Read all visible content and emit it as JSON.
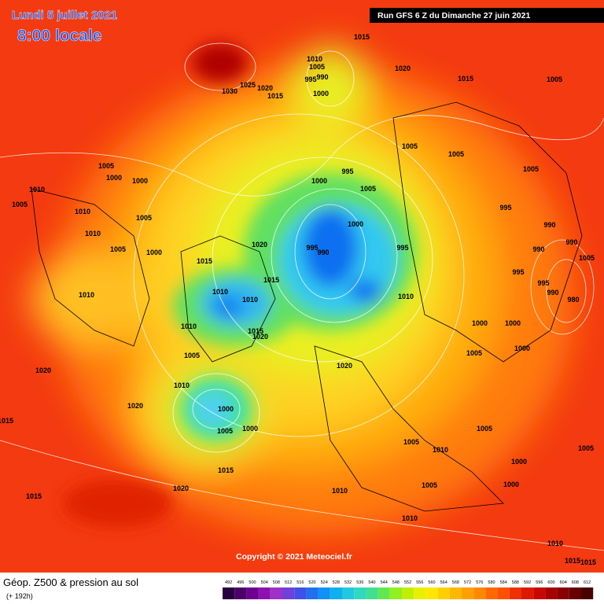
{
  "header": {
    "date": "Lundi 5 juillet 2021",
    "time": "8:00 locale",
    "run": "Run GFS 6 Z du Dimanche 27 juin 2021"
  },
  "footer": {
    "copyright": "Copyright © 2021 Meteociel.fr",
    "title": "Géop. Z500 & pression au sol",
    "lead": "(+ 192h)"
  },
  "scale": {
    "ticks": [
      492,
      496,
      500,
      504,
      508,
      512,
      516,
      520,
      524,
      528,
      532,
      536,
      540,
      544,
      548,
      552,
      556,
      560,
      564,
      568,
      572,
      576,
      580,
      584,
      588,
      592,
      596,
      600,
      604,
      608,
      612
    ],
    "colors": [
      "#2a0040",
      "#4b0068",
      "#6d0090",
      "#8e10b0",
      "#a030c8",
      "#7040d8",
      "#4050e8",
      "#2070f0",
      "#1090f8",
      "#10b0f0",
      "#20c8e0",
      "#30d8c0",
      "#40e090",
      "#60e850",
      "#90f020",
      "#c0f000",
      "#e8f000",
      "#ffe800",
      "#ffd000",
      "#ffb800",
      "#ffa000",
      "#ff8800",
      "#ff6800",
      "#ff5000",
      "#f03000",
      "#e01800",
      "#c80800",
      "#a80000",
      "#880000",
      "#680000",
      "#480000"
    ]
  },
  "isobars": [
    1015,
    1010,
    1005,
    995,
    990,
    1000,
    1020,
    1015,
    1005,
    1030,
    1025,
    1020,
    1015,
    1005,
    1000,
    1000,
    1010,
    1005,
    1010,
    1005,
    1010,
    1005,
    1000,
    1015,
    1020,
    1015,
    1010,
    1010,
    1010,
    1015,
    1020,
    1005,
    1010,
    1020,
    1020,
    1015,
    1000,
    1005,
    1000,
    1015,
    1020,
    1015,
    1005,
    1005,
    995,
    1000,
    1005,
    1000,
    995,
    990,
    995,
    1010,
    1005,
    995,
    990,
    990,
    990,
    1005,
    995,
    995,
    990,
    980,
    1000,
    1000,
    1000,
    1005,
    1020,
    1005,
    1005,
    1010,
    1005,
    1000,
    1000,
    1005,
    1010,
    1010,
    1010,
    1015,
    1015,
    1010
  ]
}
